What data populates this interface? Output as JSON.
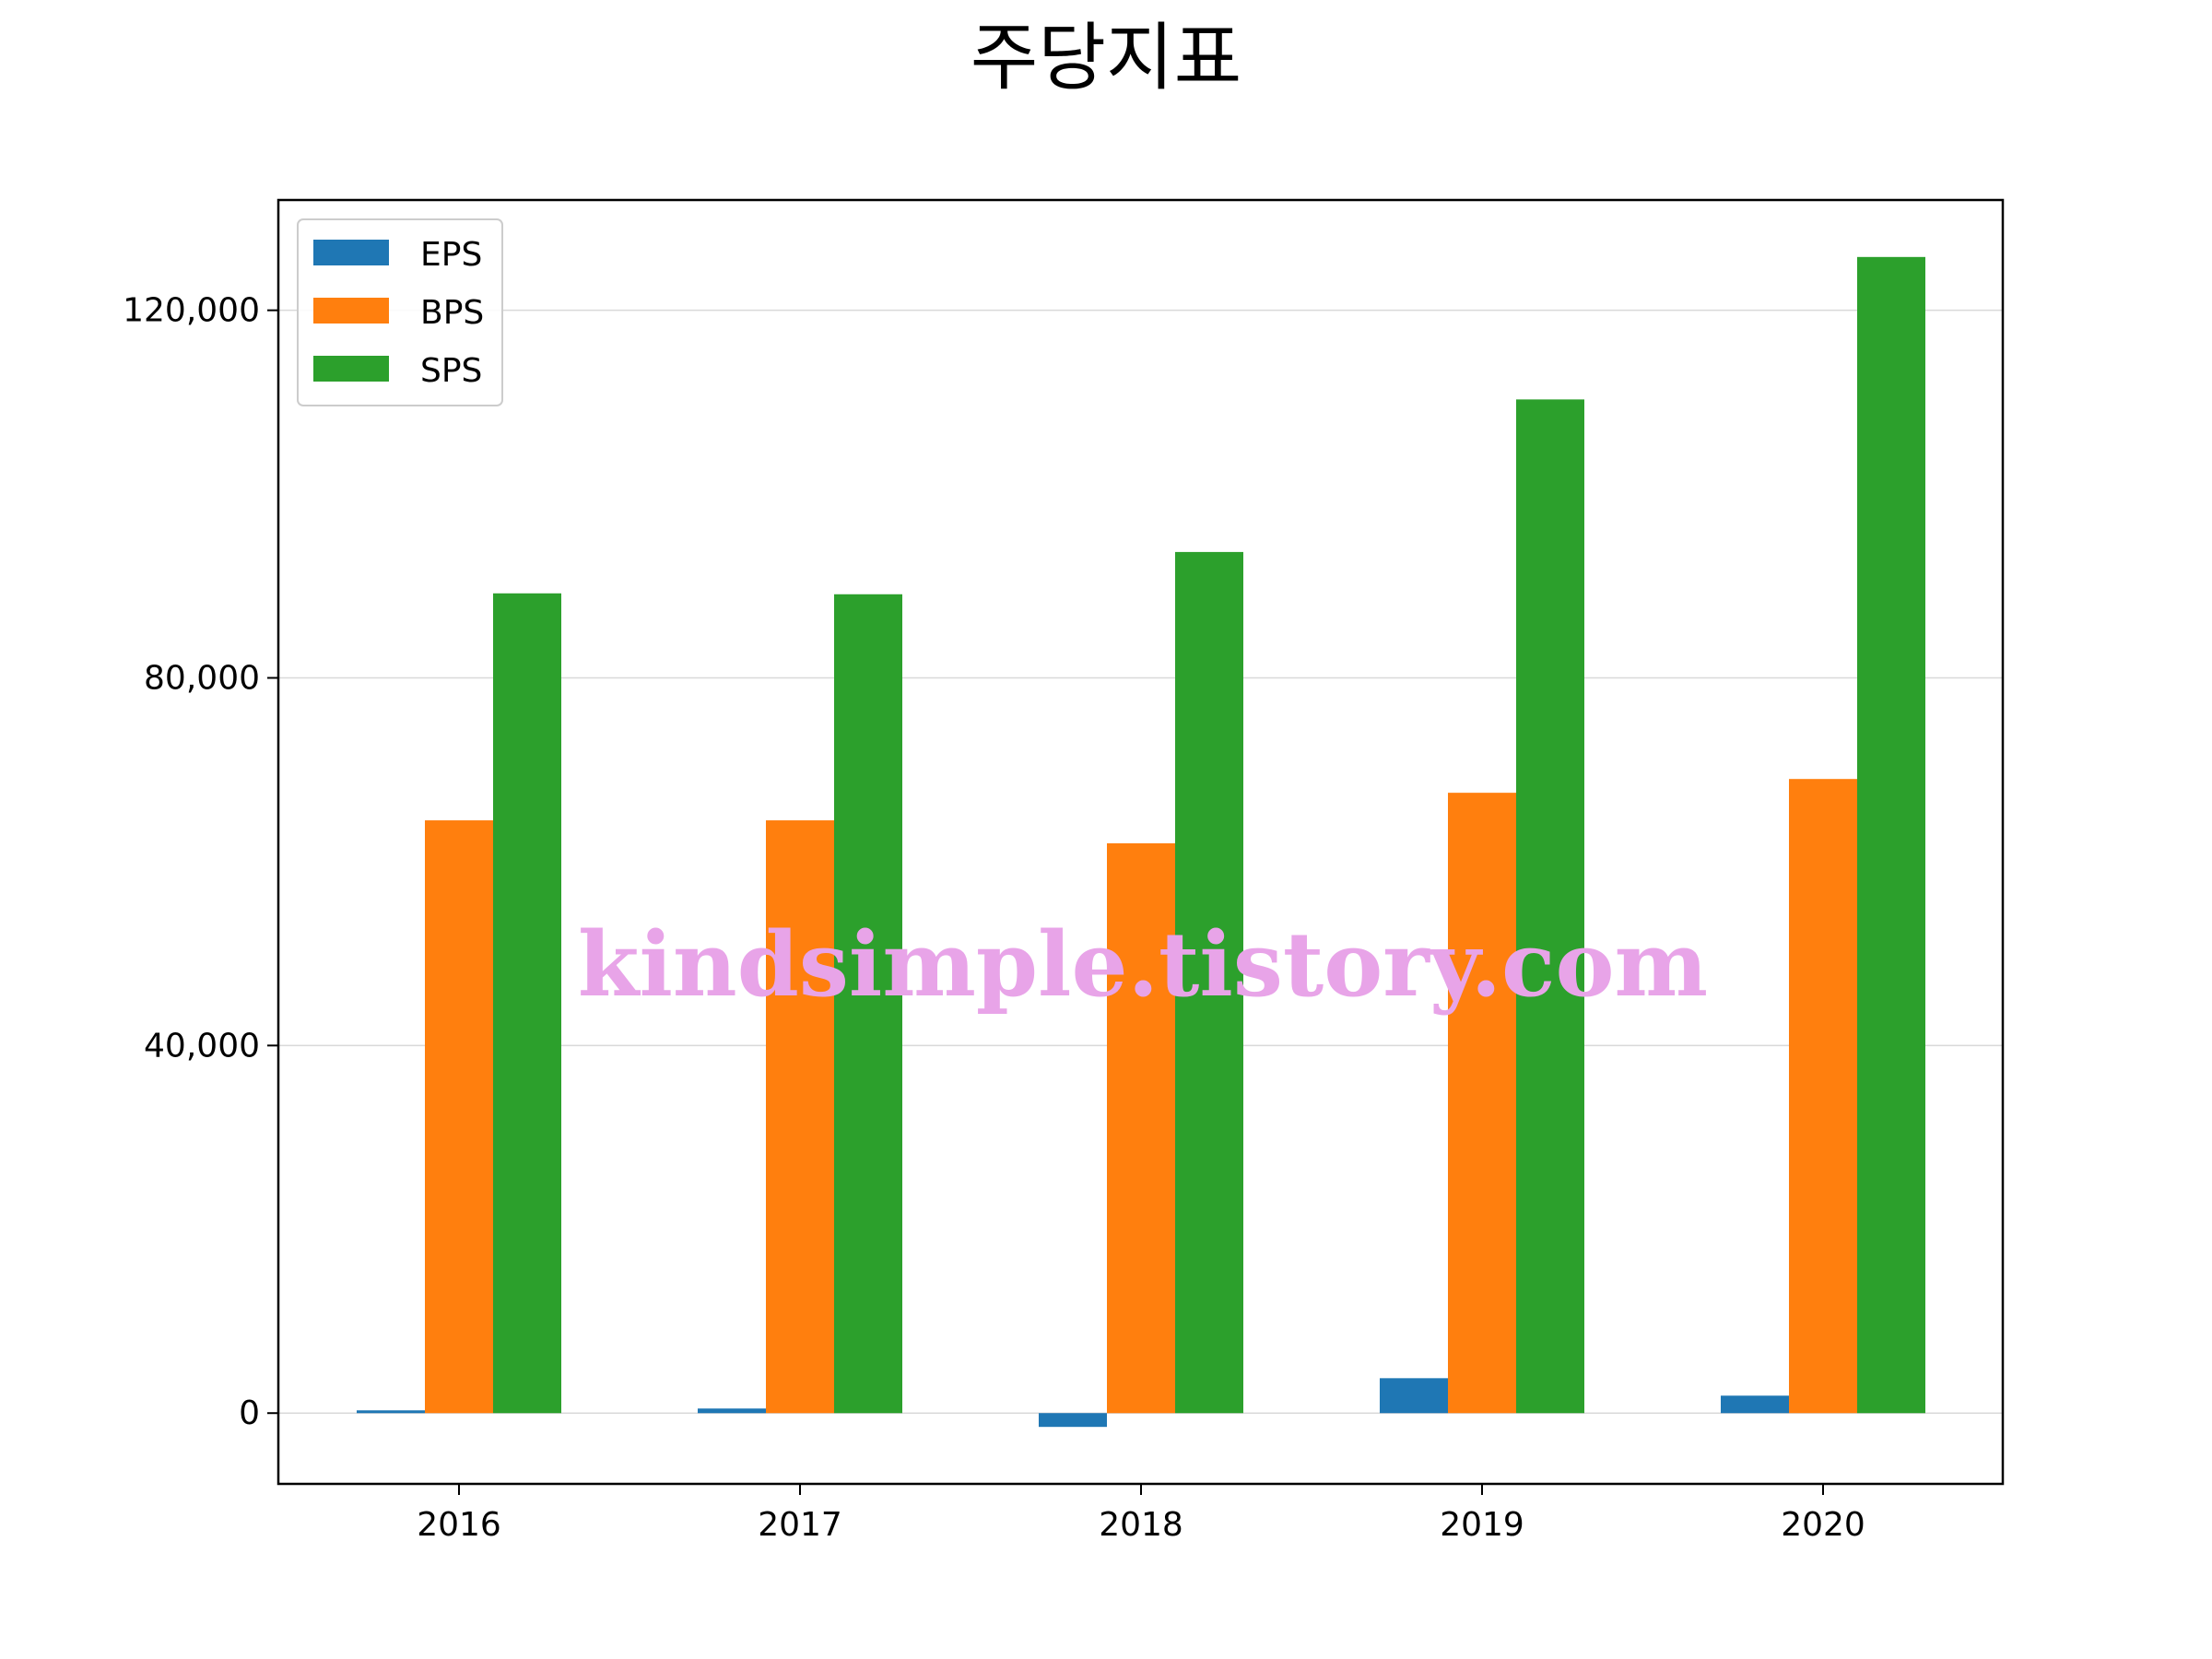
{
  "chart_data": {
    "type": "bar",
    "title": "주당지표",
    "xlabel": "",
    "ylabel": "",
    "categories": [
      "2016",
      "2017",
      "2018",
      "2019",
      "2020"
    ],
    "series": [
      {
        "name": "EPS",
        "color": "#1f77b4",
        "values": [
          300,
          500,
          -1500,
          3800,
          1900
        ]
      },
      {
        "name": "BPS",
        "color": "#ff7f0e",
        "values": [
          64500,
          64500,
          62000,
          67500,
          69000
        ]
      },
      {
        "name": "SPS",
        "color": "#2ca02c",
        "values": [
          89200,
          89100,
          93700,
          110300,
          125800
        ]
      }
    ],
    "yticks": [
      0,
      40000,
      80000,
      120000
    ],
    "ytick_labels": [
      "0",
      "40,000",
      "80,000",
      "120,000"
    ],
    "ylim": [
      -7700,
      132000
    ],
    "grid": "y",
    "legend_position": "top-left"
  },
  "watermark": "kindsimple.tistory.com"
}
